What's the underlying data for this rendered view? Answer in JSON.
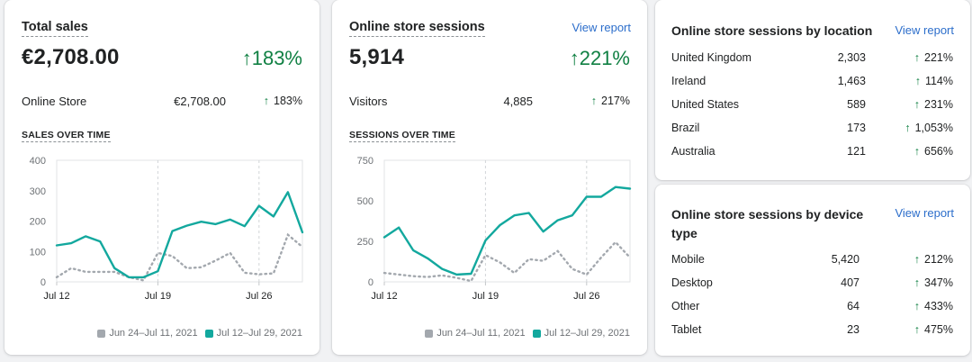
{
  "colors": {
    "accent": "#13a89e",
    "comparison": "#a3a8ae",
    "positive": "#108043",
    "link": "#2c6ecb"
  },
  "total_sales": {
    "title": "Total sales",
    "value": "€2,708.00",
    "change": "183%",
    "row": {
      "label": "Online Store",
      "value": "€2,708.00",
      "change": "183%"
    },
    "subtitle": "SALES OVER TIME",
    "legend": {
      "previous": "Jun 24–Jul 11, 2021",
      "current": "Jul 12–Jul 29, 2021"
    }
  },
  "sessions": {
    "title": "Online store sessions",
    "view_report": "View report",
    "value": "5,914",
    "change": "221%",
    "row": {
      "label": "Visitors",
      "value": "4,885",
      "change": "217%"
    },
    "subtitle": "SESSIONS OVER TIME",
    "legend": {
      "previous": "Jun 24–Jul 11, 2021",
      "current": "Jul 12–Jul 29, 2021"
    }
  },
  "by_location": {
    "title": "Online store sessions by location",
    "view_report": "View report",
    "rows": [
      {
        "label": "United Kingdom",
        "value": "2,303",
        "change": "221%"
      },
      {
        "label": "Ireland",
        "value": "1,463",
        "change": "114%"
      },
      {
        "label": "United States",
        "value": "589",
        "change": "231%"
      },
      {
        "label": "Brazil",
        "value": "173",
        "change": "1,053%"
      },
      {
        "label": "Australia",
        "value": "121",
        "change": "656%"
      }
    ]
  },
  "by_device": {
    "title_line1": "Online store sessions by device",
    "title_line2": "type",
    "view_report": "View report",
    "rows": [
      {
        "label": "Mobile",
        "value": "5,420",
        "change": "212%"
      },
      {
        "label": "Desktop",
        "value": "407",
        "change": "347%"
      },
      {
        "label": "Other",
        "value": "64",
        "change": "433%"
      },
      {
        "label": "Tablet",
        "value": "23",
        "change": "475%"
      }
    ]
  },
  "chart_data": [
    {
      "type": "line",
      "title": "SALES OVER TIME",
      "x_tick_labels": [
        "Jul 12",
        "Jul 19",
        "Jul 26"
      ],
      "x_tick_index": [
        0,
        7,
        14
      ],
      "ylim": [
        0,
        400
      ],
      "y_ticks": [
        0,
        100,
        200,
        300,
        400
      ],
      "series": [
        {
          "name": "Jul 12–Jul 29, 2021",
          "role": "current",
          "values": [
            120,
            127,
            150,
            133,
            45,
            15,
            15,
            35,
            167,
            185,
            198,
            190,
            205,
            183,
            250,
            215,
            295,
            163
          ]
        },
        {
          "name": "Jun 24–Jul 11, 2021",
          "role": "previous",
          "values": [
            15,
            45,
            33,
            33,
            33,
            15,
            5,
            95,
            85,
            45,
            48,
            70,
            95,
            30,
            25,
            28,
            155,
            115
          ]
        }
      ]
    },
    {
      "type": "line",
      "title": "SESSIONS OVER TIME",
      "x_tick_labels": [
        "Jul 12",
        "Jul 19",
        "Jul 26"
      ],
      "x_tick_index": [
        0,
        7,
        14
      ],
      "ylim": [
        0,
        750
      ],
      "y_ticks": [
        0,
        250,
        500,
        750
      ],
      "series": [
        {
          "name": "Jul 12–Jul 29, 2021",
          "role": "current",
          "values": [
            275,
            335,
            195,
            145,
            80,
            45,
            50,
            255,
            350,
            410,
            425,
            310,
            380,
            410,
            525,
            525,
            585,
            575
          ]
        },
        {
          "name": "Jun 24–Jul 11, 2021",
          "role": "previous",
          "values": [
            55,
            45,
            35,
            30,
            40,
            25,
            5,
            165,
            120,
            55,
            140,
            130,
            190,
            80,
            45,
            150,
            245,
            150
          ]
        }
      ]
    }
  ]
}
